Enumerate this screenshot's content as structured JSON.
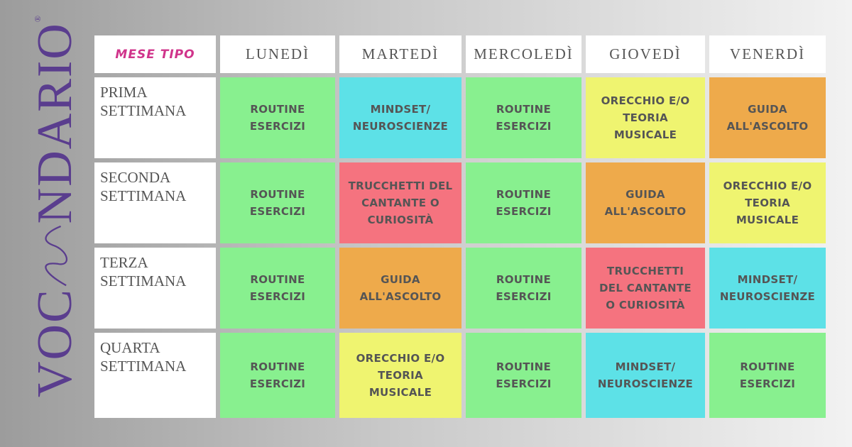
{
  "logo": {
    "parts": [
      "VOC",
      "NDARIO"
    ],
    "mark": "®"
  },
  "table": {
    "corner": "MESE TIPO",
    "days": [
      "LUNEDÌ",
      "MARTEDÌ",
      "MERCOLEDÌ",
      "GIOVEDÌ",
      "VENERDÌ"
    ],
    "rows": [
      {
        "label": [
          "PRIMA",
          "SETTIMANA"
        ],
        "cells": [
          {
            "lines": [
              "ROUTINE",
              "ESERCIZI"
            ],
            "color": "#88f08f"
          },
          {
            "lines": [
              "MINDSET/",
              "NEUROSCIENZE"
            ],
            "color": "#5de1e7"
          },
          {
            "lines": [
              "ROUTINE",
              "ESERCIZI"
            ],
            "color": "#88f08f"
          },
          {
            "lines": [
              "ORECCHIO E/O",
              "TEORIA",
              "MUSICALE"
            ],
            "color": "#eff470"
          },
          {
            "lines": [
              "GUIDA",
              "ALL'ASCOLTO"
            ],
            "color": "#eeaa4b"
          }
        ]
      },
      {
        "label": [
          "SECONDA",
          "SETTIMANA"
        ],
        "cells": [
          {
            "lines": [
              "ROUTINE",
              "ESERCIZI"
            ],
            "color": "#88f08f"
          },
          {
            "lines": [
              "TRUCCHETTI DEL",
              "CANTANTE O",
              "CURIOSITÀ"
            ],
            "color": "#f5737f"
          },
          {
            "lines": [
              "ROUTINE",
              "ESERCIZI"
            ],
            "color": "#88f08f"
          },
          {
            "lines": [
              "GUIDA",
              "ALL'ASCOLTO"
            ],
            "color": "#eeaa4b"
          },
          {
            "lines": [
              "ORECCHIO E/O",
              "TEORIA",
              "MUSICALE"
            ],
            "color": "#eff470"
          }
        ]
      },
      {
        "label": [
          "TERZA",
          "SETTIMANA"
        ],
        "cells": [
          {
            "lines": [
              "ROUTINE",
              "ESERCIZI"
            ],
            "color": "#88f08f"
          },
          {
            "lines": [
              "GUIDA",
              "ALL'ASCOLTO"
            ],
            "color": "#eeaa4b"
          },
          {
            "lines": [
              "ROUTINE",
              "ESERCIZI"
            ],
            "color": "#88f08f"
          },
          {
            "lines": [
              "TRUCCHETTI",
              "DEL CANTANTE",
              "O CURIOSITÀ"
            ],
            "color": "#f5737f"
          },
          {
            "lines": [
              "MINDSET/",
              "NEUROSCIENZE"
            ],
            "color": "#5de1e7"
          }
        ]
      },
      {
        "label": [
          "QUARTA",
          "SETTIMANA"
        ],
        "cells": [
          {
            "lines": [
              "ROUTINE",
              "ESERCIZI"
            ],
            "color": "#88f08f"
          },
          {
            "lines": [
              "ORECCHIO E/O",
              "TEORIA",
              "MUSICALE"
            ],
            "color": "#eff470"
          },
          {
            "lines": [
              "ROUTINE",
              "ESERCIZI"
            ],
            "color": "#88f08f"
          },
          {
            "lines": [
              "MINDSET/",
              "NEUROSCIENZE"
            ],
            "color": "#5de1e7"
          },
          {
            "lines": [
              "ROUTINE",
              "ESERCIZI"
            ],
            "color": "#88f08f"
          }
        ]
      }
    ]
  }
}
